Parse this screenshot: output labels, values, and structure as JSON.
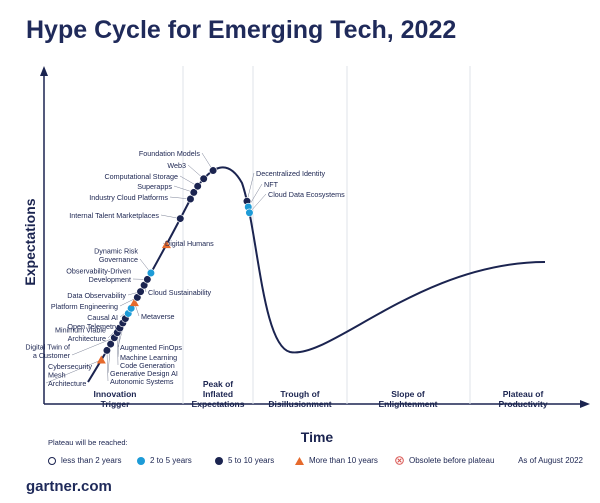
{
  "title": "Hype Cycle for Emerging Tech, 2022",
  "brand": "gartner.com",
  "as_of": "As of August 2022",
  "legend_title": "Plateau will be reached:",
  "legend": [
    {
      "key": "lt2",
      "label": "less than 2 years",
      "color": "#ffffff"
    },
    {
      "key": "2to5",
      "label": "2 to 5 years",
      "color": "#1d9bd7"
    },
    {
      "key": "5to10",
      "label": "5 to 10 years",
      "color": "#1b2450"
    },
    {
      "key": "gt10",
      "label": "More than 10 years",
      "color": "#e66a2c"
    },
    {
      "key": "obsolete",
      "label": "Obsolete before plateau",
      "color": "#d9534f"
    }
  ],
  "chart_data": {
    "type": "hype-cycle",
    "title": "Hype Cycle for Emerging Tech, 2022",
    "xlabel": "Time",
    "ylabel": "Expectations",
    "phases": [
      [
        "Innovation",
        "Trigger"
      ],
      [
        "Peak of",
        "Inflated",
        "Expectations"
      ],
      [
        "Trough of",
        "Disillusionment"
      ],
      [
        "Slope of",
        "Enlightenment"
      ],
      [
        "Plateau of",
        "Productivity"
      ]
    ],
    "technologies": [
      {
        "name": [
          "Cybersecurity",
          "Mesh",
          "Architecture"
        ],
        "category": "gt10",
        "t": 0.035
      },
      {
        "name": [
          "Autonomic Systems"
        ],
        "category": "5to10",
        "t": 0.05
      },
      {
        "name": [
          "Generative Design AI"
        ],
        "category": "5to10",
        "t": 0.06
      },
      {
        "name": [
          "Digital Twin of",
          "a Customer"
        ],
        "category": "5to10",
        "t": 0.07
      },
      {
        "name": [
          "Code Generation"
        ],
        "category": "5to10",
        "t": 0.078
      },
      {
        "name": [
          "Machine Learning"
        ],
        "category": "5to10",
        "t": 0.085
      },
      {
        "name": [
          "Minimum Viable",
          "Architecture"
        ],
        "category": "5to10",
        "t": 0.093
      },
      {
        "name": [
          "Augmented FinOps"
        ],
        "category": "5to10",
        "t": 0.1
      },
      {
        "name": [
          "Open Telemetry"
        ],
        "category": "2to5",
        "t": 0.108
      },
      {
        "name": [
          "Causal AI"
        ],
        "category": "2to5",
        "t": 0.116
      },
      {
        "name": [
          "Metaverse"
        ],
        "category": "gt10",
        "t": 0.125
      },
      {
        "name": [
          "Platform Engineering"
        ],
        "category": "5to10",
        "t": 0.133
      },
      {
        "name": [
          "Data Observability"
        ],
        "category": "5to10",
        "t": 0.142
      },
      {
        "name": [
          "Cloud Sustainability"
        ],
        "category": "5to10",
        "t": 0.152
      },
      {
        "name": [
          "Observability-Driven",
          "Development"
        ],
        "category": "5to10",
        "t": 0.161
      },
      {
        "name": [
          "Dynamic Risk",
          "Governance"
        ],
        "category": "2to5",
        "t": 0.171
      },
      {
        "name": [
          "Digital Humans"
        ],
        "category": "gt10",
        "t": 0.215
      },
      {
        "name": [
          "Internal Talent Marketplaces"
        ],
        "category": "5to10",
        "t": 0.255
      },
      {
        "name": [
          "Industry Cloud Platforms"
        ],
        "category": "5to10",
        "t": 0.285
      },
      {
        "name": [
          "Superapps"
        ],
        "category": "5to10",
        "t": 0.295
      },
      {
        "name": [
          "Computational Storage"
        ],
        "category": "5to10",
        "t": 0.305
      },
      {
        "name": [
          "Web3"
        ],
        "category": "5to10",
        "t": 0.318
      },
      {
        "name": [
          "Foundation Models"
        ],
        "category": "5to10",
        "t": 0.335
      },
      {
        "name": [
          "Decentralized Identity"
        ],
        "category": "5to10",
        "t": 0.41
      },
      {
        "name": [
          "NFT"
        ],
        "category": "2to5",
        "t": 0.418
      },
      {
        "name": [
          "Cloud Data Ecosystems"
        ],
        "category": "2to5",
        "t": 0.426
      }
    ]
  }
}
